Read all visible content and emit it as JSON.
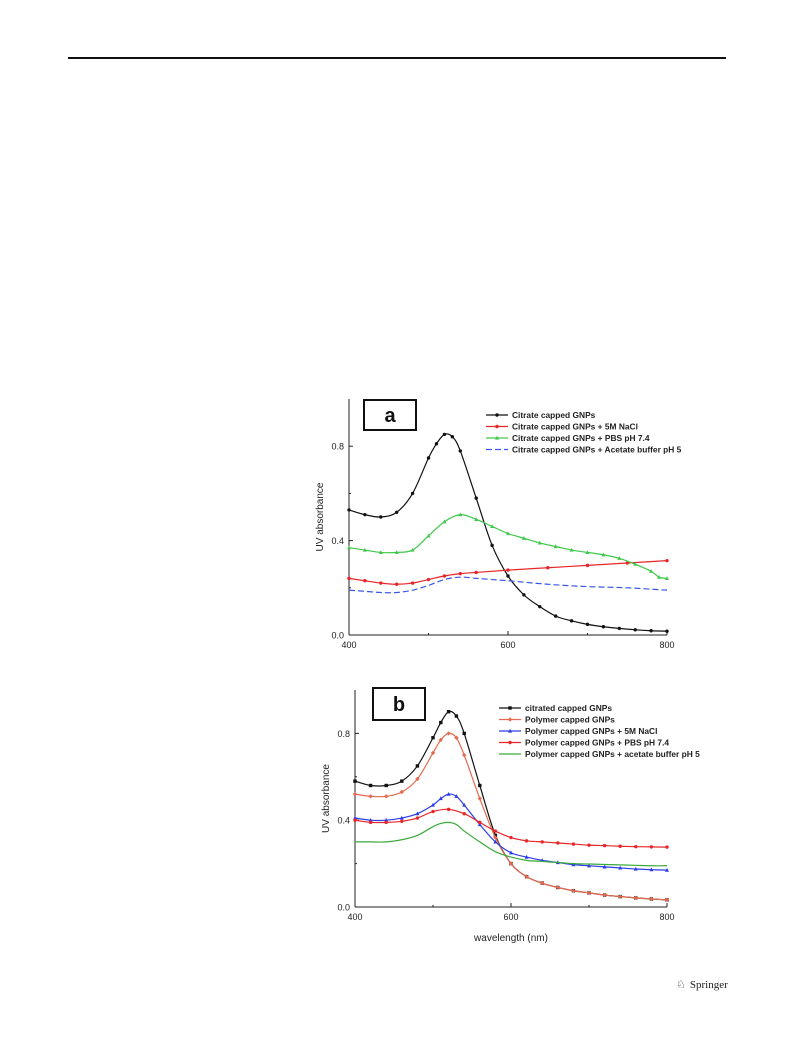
{
  "footer": {
    "publisher": "Springer",
    "icon": "springer-horse-icon"
  },
  "chart_data": [
    {
      "type": "line",
      "panel_label": "a",
      "xlabel": "",
      "ylabel": "UV absorbance",
      "xlim": [
        400,
        800
      ],
      "ylim": [
        0.0,
        1.0
      ],
      "xticks": [
        400,
        600,
        800
      ],
      "yticks": [
        0.0,
        0.4,
        0.8
      ],
      "legend_position": "top-right",
      "series": [
        {
          "name": "Citrate capped GNPs",
          "color": "#111111",
          "marker": "circle",
          "dash": "",
          "x": [
            400,
            420,
            440,
            460,
            480,
            500,
            510,
            520,
            530,
            540,
            560,
            580,
            600,
            620,
            640,
            660,
            680,
            700,
            720,
            740,
            760,
            780,
            800
          ],
          "y": [
            0.53,
            0.51,
            0.5,
            0.52,
            0.6,
            0.75,
            0.81,
            0.85,
            0.84,
            0.78,
            0.58,
            0.38,
            0.25,
            0.17,
            0.12,
            0.08,
            0.06,
            0.045,
            0.035,
            0.028,
            0.022,
            0.018,
            0.016
          ]
        },
        {
          "name": "Citrate capped GNPs + 5M NaCl",
          "color": "#e8262a",
          "marker": "circle",
          "dash": "",
          "x": [
            400,
            420,
            440,
            460,
            480,
            500,
            520,
            540,
            560,
            600,
            650,
            700,
            750,
            800
          ],
          "y": [
            0.24,
            0.23,
            0.22,
            0.215,
            0.22,
            0.235,
            0.25,
            0.26,
            0.265,
            0.275,
            0.285,
            0.295,
            0.305,
            0.315
          ]
        },
        {
          "name": "Citrate capped GNPs + PBS pH 7.4",
          "color": "#3ec94a",
          "marker": "triangle",
          "dash": "",
          "x": [
            400,
            420,
            440,
            460,
            480,
            500,
            520,
            540,
            560,
            580,
            600,
            620,
            640,
            660,
            680,
            700,
            720,
            740,
            760,
            780,
            790,
            800
          ],
          "y": [
            0.37,
            0.36,
            0.35,
            0.35,
            0.36,
            0.42,
            0.48,
            0.51,
            0.49,
            0.46,
            0.43,
            0.41,
            0.39,
            0.375,
            0.36,
            0.35,
            0.34,
            0.325,
            0.3,
            0.27,
            0.245,
            0.24
          ]
        },
        {
          "name": "Citrate capped GNPs + Acetate buffer pH 5",
          "color": "#3b57e8",
          "marker": "",
          "dash": "6,3",
          "x": [
            400,
            420,
            440,
            460,
            480,
            500,
            520,
            540,
            560,
            580,
            600,
            650,
            700,
            750,
            800
          ],
          "y": [
            0.19,
            0.185,
            0.18,
            0.18,
            0.19,
            0.21,
            0.235,
            0.245,
            0.24,
            0.235,
            0.23,
            0.215,
            0.205,
            0.2,
            0.19
          ]
        }
      ]
    },
    {
      "type": "line",
      "panel_label": "b",
      "xlabel": "wavelength (nm)",
      "ylabel": "UV absorbance",
      "xlim": [
        400,
        800
      ],
      "ylim": [
        0.0,
        1.0
      ],
      "xticks": [
        400,
        600,
        800
      ],
      "yticks": [
        0.0,
        0.4,
        0.8
      ],
      "legend_position": "top-right",
      "series": [
        {
          "name": "citrated capped GNPs",
          "color": "#111111",
          "marker": "square",
          "dash": "",
          "x": [
            400,
            420,
            440,
            460,
            480,
            500,
            510,
            520,
            530,
            540,
            560,
            580,
            600,
            620,
            640,
            660,
            680,
            700,
            720,
            740,
            760,
            780,
            800
          ],
          "y": [
            0.58,
            0.56,
            0.56,
            0.58,
            0.65,
            0.78,
            0.85,
            0.9,
            0.88,
            0.8,
            0.56,
            0.33,
            0.2,
            0.14,
            0.11,
            0.09,
            0.075,
            0.065,
            0.055,
            0.048,
            0.042,
            0.037,
            0.033
          ]
        },
        {
          "name": "Polymer capped GNPs",
          "color": "#e66a4f",
          "marker": "diamond",
          "dash": "",
          "x": [
            400,
            420,
            440,
            460,
            480,
            500,
            510,
            520,
            530,
            540,
            560,
            580,
            600,
            620,
            640,
            660,
            680,
            700,
            720,
            740,
            760,
            780,
            800
          ],
          "y": [
            0.52,
            0.51,
            0.51,
            0.53,
            0.59,
            0.71,
            0.77,
            0.8,
            0.78,
            0.7,
            0.5,
            0.32,
            0.2,
            0.14,
            0.11,
            0.09,
            0.075,
            0.065,
            0.055,
            0.048,
            0.042,
            0.037,
            0.033
          ]
        },
        {
          "name": "Polymer capped GNPs + 5M NaCl",
          "color": "#2b3de8",
          "marker": "triangle",
          "dash": "",
          "x": [
            400,
            420,
            440,
            460,
            480,
            500,
            510,
            520,
            530,
            540,
            560,
            580,
            600,
            620,
            640,
            660,
            680,
            700,
            720,
            740,
            760,
            780,
            800
          ],
          "y": [
            0.41,
            0.4,
            0.4,
            0.41,
            0.43,
            0.47,
            0.5,
            0.52,
            0.51,
            0.47,
            0.38,
            0.3,
            0.25,
            0.23,
            0.215,
            0.205,
            0.195,
            0.19,
            0.185,
            0.18,
            0.175,
            0.172,
            0.17
          ]
        },
        {
          "name": "Polymer capped GNPs + PBS pH 7.4",
          "color": "#e8262a",
          "marker": "circle",
          "dash": "",
          "x": [
            400,
            420,
            440,
            460,
            480,
            500,
            520,
            540,
            560,
            580,
            600,
            620,
            640,
            660,
            680,
            700,
            720,
            740,
            760,
            780,
            800
          ],
          "y": [
            0.4,
            0.39,
            0.39,
            0.395,
            0.41,
            0.44,
            0.45,
            0.43,
            0.39,
            0.35,
            0.32,
            0.305,
            0.3,
            0.295,
            0.29,
            0.285,
            0.283,
            0.28,
            0.278,
            0.277,
            0.276
          ]
        },
        {
          "name": "Polymer capped GNPs + acetate buffer pH 5",
          "color": "#3aa93a",
          "marker": "",
          "dash": "",
          "x": [
            400,
            420,
            440,
            460,
            480,
            500,
            510,
            520,
            530,
            540,
            560,
            580,
            600,
            620,
            640,
            660,
            680,
            700,
            720,
            740,
            760,
            780,
            800
          ],
          "y": [
            0.3,
            0.3,
            0.3,
            0.31,
            0.33,
            0.37,
            0.385,
            0.39,
            0.38,
            0.35,
            0.3,
            0.255,
            0.23,
            0.215,
            0.21,
            0.205,
            0.2,
            0.198,
            0.196,
            0.194,
            0.192,
            0.19,
            0.19
          ]
        }
      ]
    }
  ]
}
